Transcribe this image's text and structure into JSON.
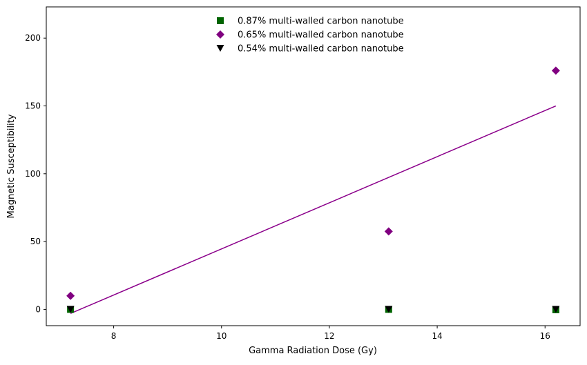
{
  "chart_data": {
    "type": "scatter",
    "title": "",
    "xlabel": "Gamma Radiation Dose (Gy)",
    "ylabel": "Magnetic Susceptibility",
    "xlim": [
      6.75,
      16.65
    ],
    "ylim": [
      -12,
      223
    ],
    "xticks": [
      8,
      10,
      12,
      14,
      16
    ],
    "yticks": [
      0,
      50,
      100,
      150,
      200
    ],
    "grid": false,
    "legend_position": "upper center",
    "series": [
      {
        "name": "0.87% multi-walled carbon nanotube",
        "marker": "square",
        "color": "#006400",
        "x": [
          7.2,
          13.1,
          16.2
        ],
        "y": [
          0.0,
          0.0,
          -0.3
        ]
      },
      {
        "name": "0.65% multi-walled carbon nanotube",
        "marker": "diamond",
        "color": "#800080",
        "x": [
          7.2,
          13.1,
          16.2
        ],
        "y": [
          10.0,
          57.5,
          176.0
        ]
      },
      {
        "name": "0.54% multi-walled carbon nanotube",
        "marker": "triangle-down",
        "color": "#000000",
        "x": [
          7.2,
          13.1,
          16.2
        ],
        "y": [
          0.0,
          0.0,
          0.0
        ]
      }
    ],
    "fit_line": {
      "color": "#8B008B",
      "x": [
        7.2,
        16.2
      ],
      "y": [
        -3.0,
        150.0
      ]
    }
  }
}
